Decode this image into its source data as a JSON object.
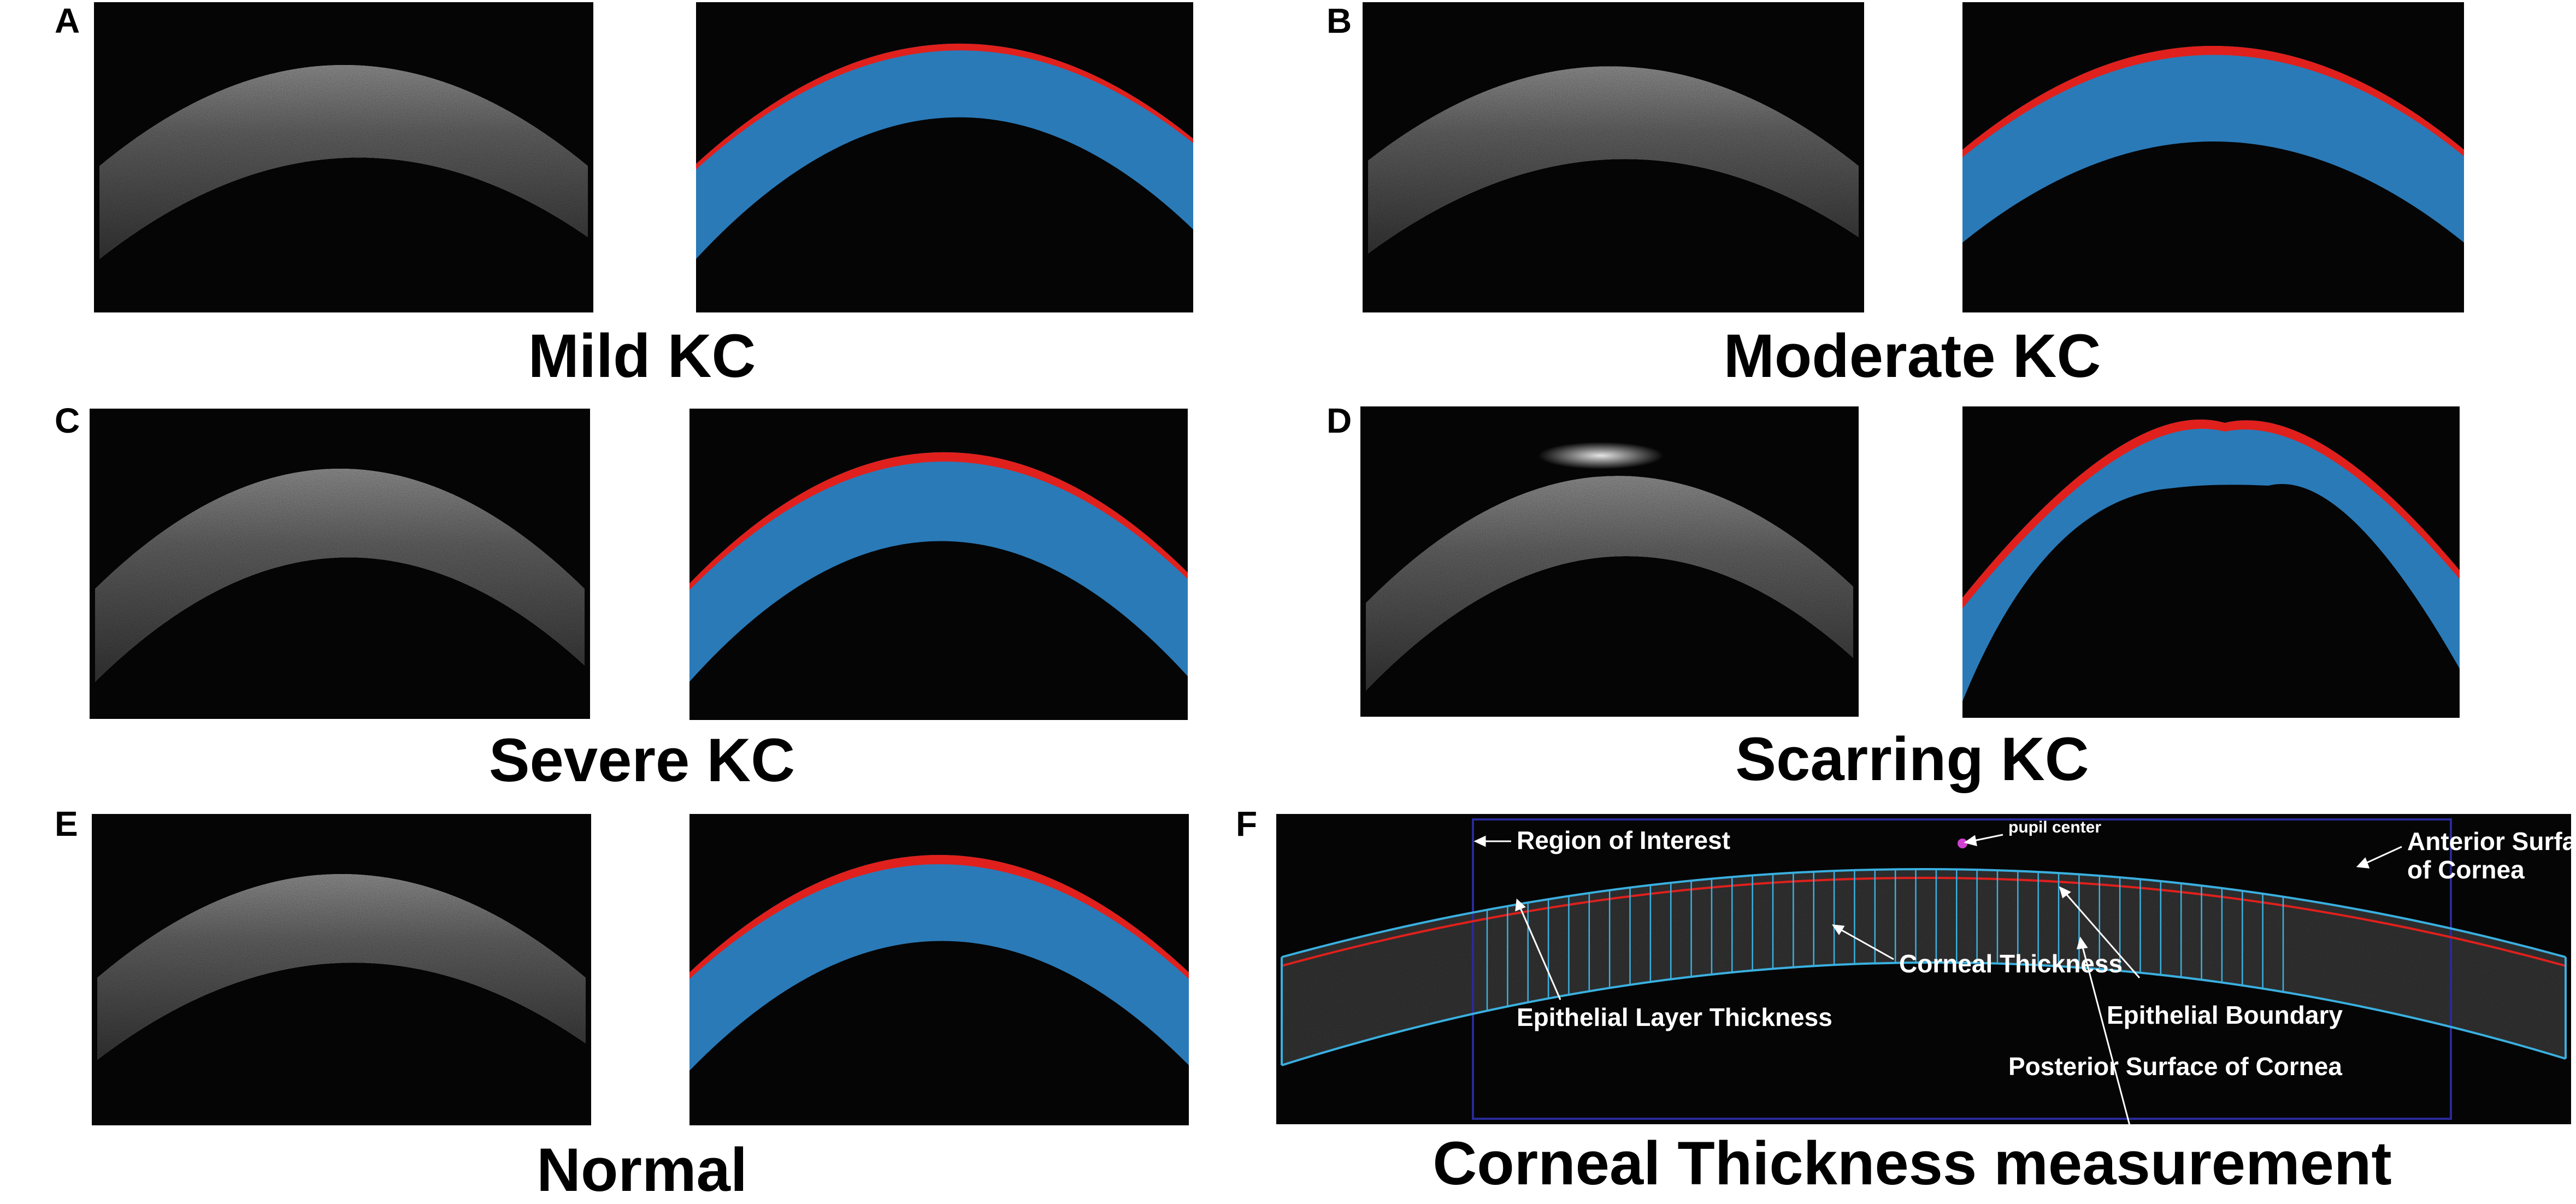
{
  "panels": {
    "A": {
      "letter": "A",
      "caption": "Mild KC"
    },
    "B": {
      "letter": "B",
      "caption": "Moderate KC"
    },
    "C": {
      "letter": "C",
      "caption": "Severe KC"
    },
    "D": {
      "letter": "D",
      "caption": "Scarring KC"
    },
    "E": {
      "letter": "E",
      "caption": "Normal"
    },
    "F": {
      "letter": "F",
      "caption": "Corneal Thickness measurement",
      "annotations": {
        "region_of_interest": "Region of Interest",
        "pupil_center": "pupil center",
        "anterior_surface_line1": "Anterior Surface",
        "anterior_surface_line2": "of Cornea",
        "corneal_thickness": "Corneal Thickness",
        "epithelial_layer_thickness": "Epithelial Layer Thickness",
        "epithelial_boundary": "Epithelial Boundary",
        "posterior_surface": "Posterior Surface of Cornea"
      }
    }
  },
  "colors": {
    "background": "#ffffff",
    "oct_background": "#050505",
    "stroma_blue": "#2a7ab8",
    "epithelium_red": "#e0201c",
    "roi_box": "#2a2a9a",
    "measurement_lines": "#3ab0e0",
    "annotation_text": "#ffffff",
    "pupil_marker": "#d040d0"
  }
}
